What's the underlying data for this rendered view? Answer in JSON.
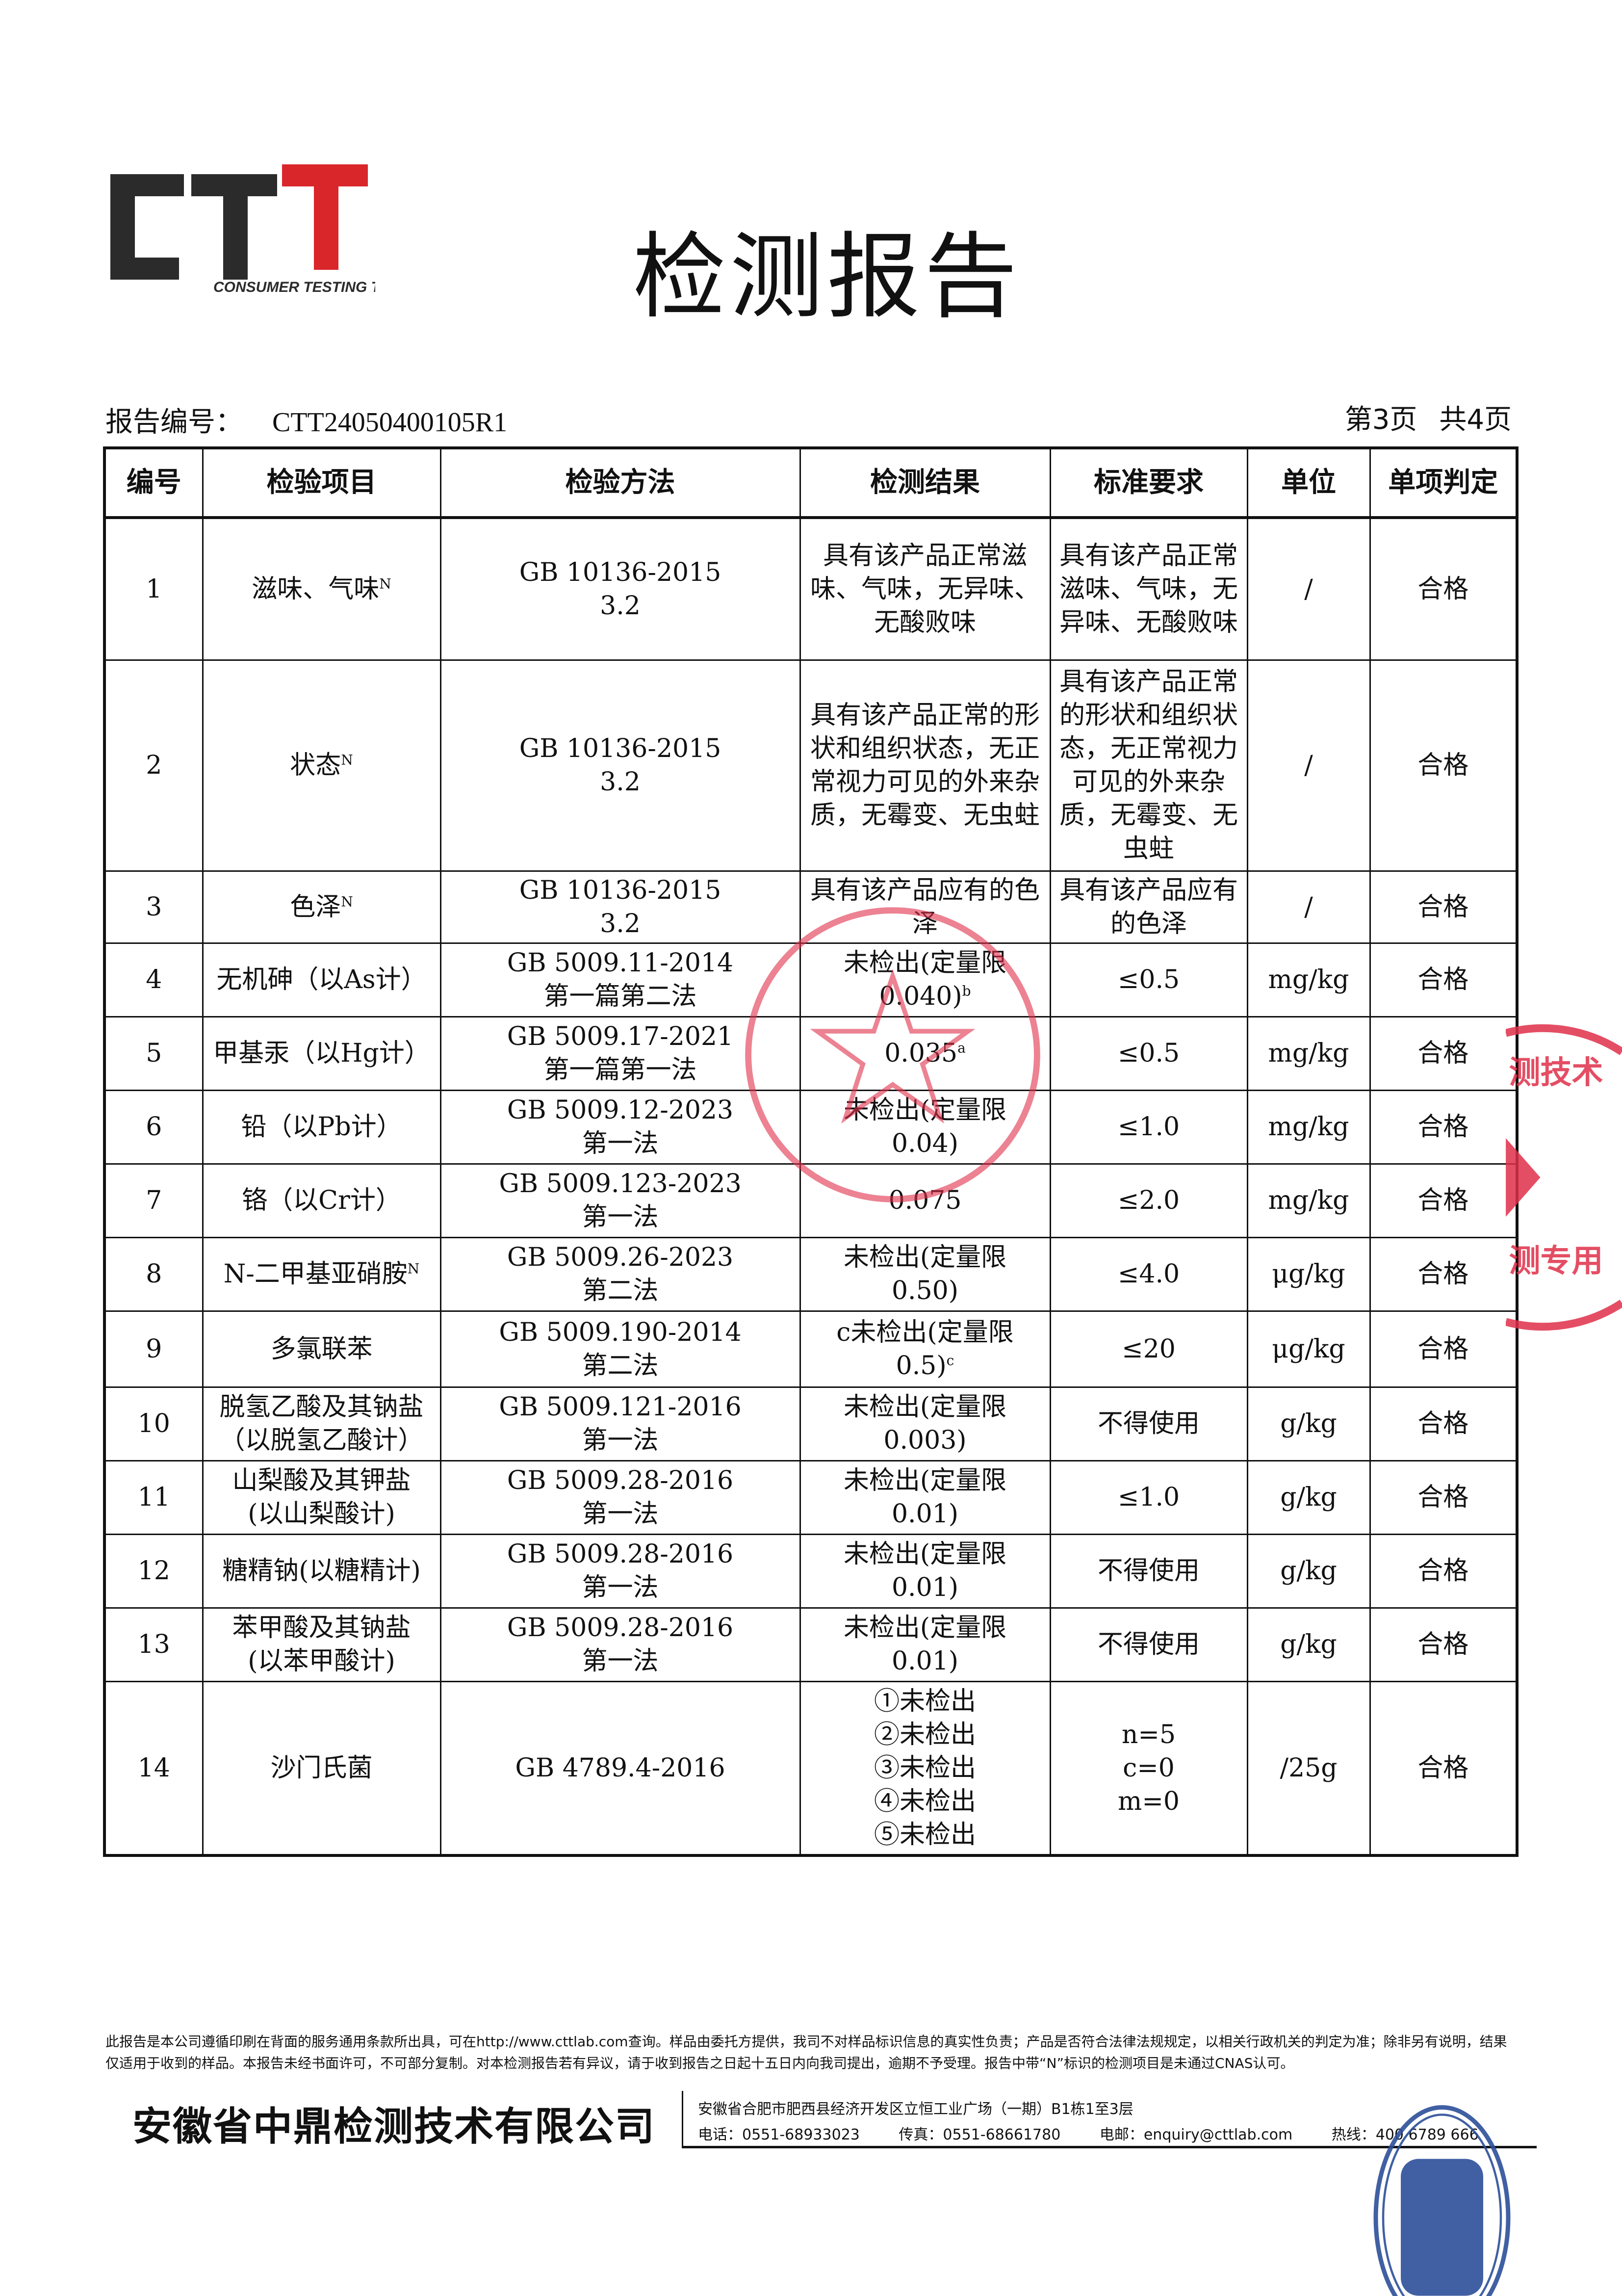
{
  "logo": {
    "text": "CTT",
    "tagline": "CONSUMER TESTING TECH",
    "colors": {
      "dark": "#2b2b2b",
      "red": "#d9262b"
    }
  },
  "title": "检测报告",
  "report": {
    "number_label": "报告编号：",
    "number": "CTT24050400105R1",
    "page": "第3页",
    "total": "共4页"
  },
  "table": {
    "headers": [
      "编号",
      "检验项目",
      "检验方法",
      "检测结果",
      "标准要求",
      "单位",
      "单项判定"
    ],
    "rows": [
      {
        "no": "1",
        "item": "滋味、气味",
        "item_sup": "N",
        "method": "GB 10136-2015\n3.2",
        "result": "具有该产品正常滋味、气味，无异味、无酸败味",
        "result_sup": "",
        "requirement": "具有该产品正常滋味、气味，无异味、无酸败味",
        "unit": "/",
        "verdict": "合格"
      },
      {
        "no": "2",
        "item": "状态",
        "item_sup": "N",
        "method": "GB 10136-2015\n3.2",
        "result": "具有该产品正常的形状和组织状态，无正常视力可见的外来杂质，无霉变、无虫蛀",
        "result_sup": "",
        "requirement": "具有该产品正常的形状和组织状态，无正常视力可见的外来杂质，无霉变、无虫蛀",
        "unit": "/",
        "verdict": "合格"
      },
      {
        "no": "3",
        "item": "色泽",
        "item_sup": "N",
        "method": "GB 10136-2015\n3.2",
        "result": "具有该产品应有的色泽",
        "result_sup": "",
        "requirement": "具有该产品应有的色泽",
        "unit": "/",
        "verdict": "合格"
      },
      {
        "no": "4",
        "item": "无机砷（以As计）",
        "item_sup": "",
        "method": "GB 5009.11-2014\n第一篇第二法",
        "result": "未检出(定量限\n0.040)",
        "result_sup": "b",
        "requirement": "≤0.5",
        "unit": "mg/kg",
        "verdict": "合格"
      },
      {
        "no": "5",
        "item": "甲基汞（以Hg计）",
        "item_sup": "",
        "method": "GB 5009.17-2021\n第一篇第一法",
        "result": "0.035",
        "result_sup": "a",
        "requirement": "≤0.5",
        "unit": "mg/kg",
        "verdict": "合格"
      },
      {
        "no": "6",
        "item": "铅（以Pb计）",
        "item_sup": "",
        "method": "GB 5009.12-2023\n第一法",
        "result": "未检出(定量限\n0.04)",
        "result_sup": "",
        "requirement": "≤1.0",
        "unit": "mg/kg",
        "verdict": "合格"
      },
      {
        "no": "7",
        "item": "铬（以Cr计）",
        "item_sup": "",
        "method": "GB 5009.123-2023\n第一法",
        "result": "0.075",
        "result_sup": "",
        "requirement": "≤2.0",
        "unit": "mg/kg",
        "verdict": "合格"
      },
      {
        "no": "8",
        "item": "N-二甲基亚硝胺",
        "item_sup": "N",
        "method": "GB 5009.26-2023\n第二法",
        "result": "未检出(定量限\n0.50)",
        "result_sup": "",
        "requirement": "≤4.0",
        "unit": "μg/kg",
        "verdict": "合格"
      },
      {
        "no": "9",
        "item": "多氯联苯",
        "item_sup": "",
        "method": "GB 5009.190-2014\n第二法",
        "result": "c未检出(定量限\n0.5)",
        "result_sup": "c",
        "requirement": "≤20",
        "unit": "μg/kg",
        "verdict": "合格"
      },
      {
        "no": "10",
        "item": "脱氢乙酸及其钠盐\n（以脱氢乙酸计）",
        "item_sup": "",
        "method": "GB 5009.121-2016\n第一法",
        "result": "未检出(定量限\n0.003)",
        "result_sup": "",
        "requirement": "不得使用",
        "unit": "g/kg",
        "verdict": "合格"
      },
      {
        "no": "11",
        "item": "山梨酸及其钾盐\n(以山梨酸计)",
        "item_sup": "",
        "method": "GB 5009.28-2016\n第一法",
        "result": "未检出(定量限\n0.01)",
        "result_sup": "",
        "requirement": "≤1.0",
        "unit": "g/kg",
        "verdict": "合格"
      },
      {
        "no": "12",
        "item": "糖精钠(以糖精计)",
        "item_sup": "",
        "method": "GB 5009.28-2016\n第一法",
        "result": "未检出(定量限\n0.01)",
        "result_sup": "",
        "requirement": "不得使用",
        "unit": "g/kg",
        "verdict": "合格"
      },
      {
        "no": "13",
        "item": "苯甲酸及其钠盐\n(以苯甲酸计)",
        "item_sup": "",
        "method": "GB 5009.28-2016\n第一法",
        "result": "未检出(定量限\n0.01)",
        "result_sup": "",
        "requirement": "不得使用",
        "unit": "g/kg",
        "verdict": "合格"
      },
      {
        "no": "14",
        "item": "沙门氏菌",
        "item_sup": "",
        "method": "GB 4789.4-2016",
        "result": "①未检出\n②未检出\n③未检出\n④未检出\n⑤未检出",
        "result_sup": "",
        "requirement": "n=5\nc=0\nm=0",
        "unit": "/25g",
        "verdict": "合格"
      }
    ]
  },
  "footer": {
    "disclaimer": "此报告是本公司遵循印刷在背面的服务通用条款所出具，可在http://www.cttlab.com查询。样品由委托方提供，我司不对样品标识信息的真实性负责；产品是否符合法律法规规定，以相关行政机关的判定为准；除非另有说明，结果仅适用于收到的样品。本报告未经书面许可，不可部分复制。对本检测报告若有异议，请于收到报告之日起十五日内向我司提出，逾期不予受理。报告中带“N”标识的检测项目是未通过CNAS认可。",
    "company": "安徽省中鼎检测技术有限公司",
    "address": "安徽省合肥市肥西县经济开发区立恒工业广场（一期）B1栋1至3层",
    "phone": "电话：0551-68933023",
    "fax": "传真：0551-68661780",
    "email": "电邮：enquiry@cttlab.com",
    "hotline": "热线：400 6789 666"
  },
  "stamps": {
    "red": "#e0304a",
    "blue": "#2c4f9a"
  }
}
